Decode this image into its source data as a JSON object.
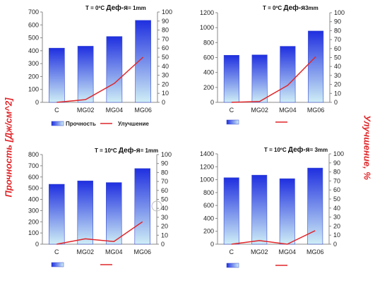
{
  "figure": {
    "left_axis_title": "Прочность [Дж/см^2]",
    "right_axis_title": "Улучшение, %",
    "bar_gradient_top": "#1f2fe0",
    "bar_gradient_bottom": "#cfeef6",
    "line_color": "#e0262a"
  },
  "chart_data": [
    {
      "type": "bar",
      "title_prefix": "T = 0ºC",
      "title_main": "Деф-я",
      "title_suffix": "= 1mm",
      "categories": [
        "C",
        "MG02",
        "MG04",
        "MG06"
      ],
      "ylim": [
        0,
        700
      ],
      "yticks": [
        0,
        100,
        200,
        300,
        400,
        500,
        600,
        700
      ],
      "y2lim": [
        0,
        100
      ],
      "y2ticks": [
        0,
        10,
        20,
        30,
        40,
        50,
        60,
        70,
        80,
        90,
        100
      ],
      "series": [
        {
          "name": "Прочность",
          "type": "bar",
          "axis": "left",
          "values": [
            420,
            435,
            510,
            635
          ]
        },
        {
          "name": "Улучшение",
          "type": "line",
          "axis": "right",
          "values": [
            0,
            3,
            21,
            50
          ]
        }
      ],
      "legend": "bottom"
    },
    {
      "type": "bar",
      "title_prefix": "T = 0ºC",
      "title_main": "Деф-я",
      "title_suffix": "3mm",
      "categories": [
        "C",
        "MG02",
        "MG04",
        "MG06"
      ],
      "ylim": [
        0,
        1200
      ],
      "yticks": [
        0,
        200,
        400,
        600,
        800,
        1000,
        1200
      ],
      "y2lim": [
        0,
        100
      ],
      "y2ticks": [
        0,
        10,
        20,
        30,
        40,
        50,
        60,
        70,
        80,
        90,
        100
      ],
      "series": [
        {
          "name": "",
          "type": "bar",
          "axis": "left",
          "values": [
            630,
            635,
            750,
            955
          ]
        },
        {
          "name": "",
          "type": "line",
          "axis": "right",
          "values": [
            0,
            1,
            19,
            51
          ]
        }
      ],
      "legend": "bottom"
    },
    {
      "type": "bar",
      "title_prefix": "T = 10ºC",
      "title_main": "Деф-я",
      "title_suffix": "= 1mm",
      "categories": [
        "C",
        "MG02",
        "MG04",
        "MG06"
      ],
      "ylim": [
        0,
        800
      ],
      "yticks": [
        0,
        100,
        200,
        300,
        400,
        500,
        600,
        700,
        800
      ],
      "y2lim": [
        0,
        100
      ],
      "y2ticks": [
        0,
        10,
        20,
        30,
        40,
        50,
        60,
        70,
        80,
        90,
        100
      ],
      "series": [
        {
          "name": "",
          "type": "bar",
          "axis": "left",
          "values": [
            535,
            565,
            550,
            675
          ]
        },
        {
          "name": "",
          "type": "line",
          "axis": "right",
          "values": [
            0,
            6,
            3,
            25
          ]
        }
      ],
      "legend": "bottom"
    },
    {
      "type": "bar",
      "title_prefix": "T = 10ºC",
      "title_main": "Деф-я",
      "title_suffix": "= 3mm",
      "categories": [
        "C",
        "MG02",
        "MG04",
        "MG06"
      ],
      "ylim": [
        0,
        1400
      ],
      "yticks": [
        0,
        200,
        400,
        600,
        800,
        1000,
        1200,
        1400
      ],
      "y2lim": [
        0,
        100
      ],
      "y2ticks": [
        0,
        10,
        20,
        30,
        40,
        50,
        60,
        70,
        80,
        90,
        100
      ],
      "series": [
        {
          "name": "",
          "type": "bar",
          "axis": "left",
          "values": [
            1030,
            1070,
            1015,
            1180
          ]
        },
        {
          "name": "",
          "type": "line",
          "axis": "right",
          "values": [
            0,
            4,
            0,
            15
          ]
        }
      ],
      "legend": "bottom"
    }
  ]
}
